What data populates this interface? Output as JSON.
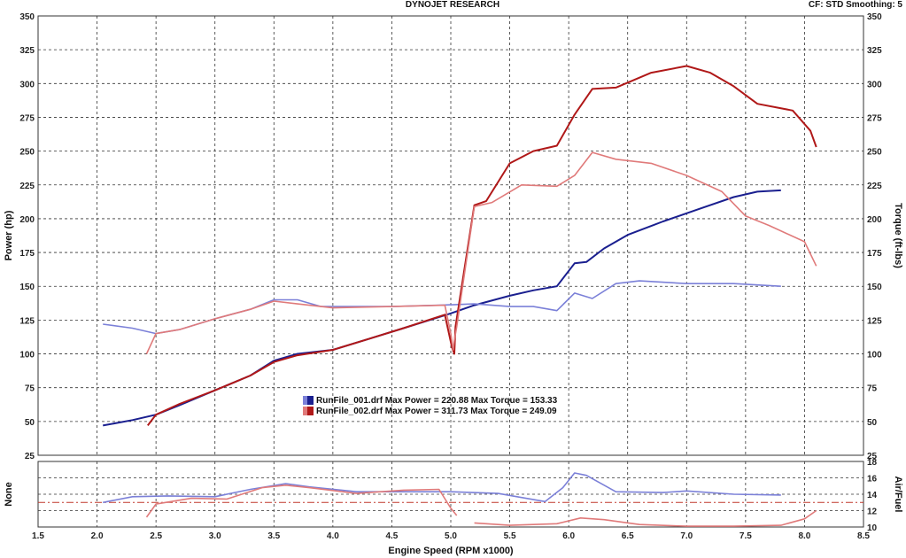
{
  "header": {
    "title": "DYNOJET RESEARCH",
    "settings": "CF: STD  Smoothing: 5"
  },
  "colors": {
    "run1_power": "#1a1f8f",
    "run1_torque": "#7b80d8",
    "run2_power": "#b01818",
    "run2_torque": "#e07a7a",
    "af_ref_line": "#c0392b"
  },
  "chart_data": [
    {
      "type": "line",
      "title": "DYNOJET RESEARCH",
      "xlabel": "Engine Speed (RPM x1000)",
      "ylabel": "Power (hp)",
      "y2label": "Torque (ft-lbs)",
      "xlim": [
        1.5,
        8.5
      ],
      "ylim": [
        25,
        350
      ],
      "y2lim": [
        25,
        350
      ],
      "x_ticks": [
        "1.5",
        "2.0",
        "2.5",
        "3.0",
        "3.5",
        "4.0",
        "4.5",
        "5.0",
        "5.5",
        "6.0",
        "6.5",
        "7.0",
        "7.5",
        "8.0",
        "8.5"
      ],
      "y_ticks": [
        "25",
        "50",
        "75",
        "100",
        "125",
        "150",
        "175",
        "200",
        "225",
        "250",
        "275",
        "300",
        "325",
        "350"
      ],
      "grid": true,
      "series": [
        {
          "name": "RunFile_001.drf",
          "quantity": "power",
          "color": "#1a1f8f",
          "x": [
            2.05,
            2.3,
            2.5,
            2.7,
            3.0,
            3.3,
            3.5,
            3.7,
            4.0,
            4.3,
            4.6,
            5.0,
            5.2,
            5.5,
            5.7,
            5.9,
            6.05,
            6.15,
            6.3,
            6.5,
            6.8,
            7.1,
            7.4,
            7.6,
            7.8
          ],
          "y": [
            47,
            51,
            55,
            62,
            73,
            84,
            95,
            100,
            103,
            111,
            119,
            130,
            136,
            143,
            147,
            150,
            167,
            168,
            178,
            188,
            198,
            207,
            216,
            220,
            221
          ]
        },
        {
          "name": "RunFile_001.drf",
          "quantity": "torque",
          "color": "#7b80d8",
          "x": [
            2.05,
            2.3,
            2.5,
            2.7,
            3.0,
            3.3,
            3.5,
            3.7,
            3.9,
            4.2,
            4.5,
            4.9,
            5.2,
            5.5,
            5.7,
            5.9,
            6.05,
            6.2,
            6.4,
            6.6,
            7.0,
            7.4,
            7.8
          ],
          "y": [
            122,
            119,
            115,
            118,
            126,
            133,
            140,
            140,
            135,
            135,
            135,
            136,
            137,
            135,
            135,
            132,
            145,
            141,
            152,
            154,
            152,
            152,
            150
          ]
        },
        {
          "name": "RunFile_002.drf",
          "quantity": "power",
          "color": "#b01818",
          "x": [
            2.43,
            2.5,
            2.7,
            3.0,
            3.3,
            3.5,
            3.7,
            4.0,
            4.3,
            4.6,
            4.95,
            5.01,
            5.03,
            5.04,
            5.2,
            5.3,
            5.5,
            5.7,
            5.9,
            6.05,
            6.2,
            6.4,
            6.7,
            7.0,
            7.2,
            7.4,
            7.6,
            7.9,
            8.05,
            8.1
          ],
          "y": [
            47,
            55,
            63,
            73,
            84,
            94,
            99,
            103,
            111,
            119,
            129,
            105,
            100,
            120,
            210,
            213,
            241,
            250,
            254,
            277,
            296,
            297,
            308,
            313,
            308,
            298,
            285,
            280,
            265,
            253
          ]
        },
        {
          "name": "RunFile_002.drf",
          "quantity": "torque",
          "color": "#e07a7a",
          "x": [
            2.42,
            2.5,
            2.7,
            3.0,
            3.3,
            3.5,
            3.7,
            4.0,
            4.5,
            4.95,
            5.0,
            5.02,
            5.03,
            5.05,
            5.2,
            5.35,
            5.6,
            5.9,
            6.05,
            6.2,
            6.4,
            6.7,
            7.0,
            7.3,
            7.5,
            7.7,
            8.0,
            8.1
          ],
          "y": [
            100,
            115,
            118,
            126,
            133,
            139,
            137,
            134,
            135,
            136,
            115,
            103,
            110,
            120,
            209,
            212,
            225,
            224,
            232,
            249,
            244,
            241,
            232,
            220,
            202,
            195,
            183,
            165
          ]
        }
      ]
    },
    {
      "type": "line",
      "ylabel": "None",
      "y2label": "Air/Fuel",
      "xlim": [
        1.5,
        8.5
      ],
      "y2lim": [
        10,
        18
      ],
      "y2_ticks": [
        "10",
        "12",
        "14",
        "16",
        "18"
      ],
      "reference_y": 13,
      "grid": true,
      "series": [
        {
          "name": "RunFile_001.drf",
          "quantity": "air/fuel",
          "color": "#7b80d8",
          "x": [
            2.05,
            2.3,
            2.6,
            3.0,
            3.3,
            3.6,
            3.8,
            4.2,
            4.6,
            5.0,
            5.4,
            5.8,
            5.95,
            6.05,
            6.15,
            6.4,
            6.8,
            7.0,
            7.4,
            7.8
          ],
          "y": [
            13.0,
            13.7,
            13.8,
            13.7,
            14.6,
            15.3,
            14.9,
            14.3,
            14.3,
            14.3,
            14.1,
            13.1,
            14.8,
            16.6,
            16.3,
            14.3,
            14.2,
            14.4,
            14.0,
            13.9
          ]
        },
        {
          "name": "RunFile_002.drf",
          "quantity": "air/fuel",
          "color": "#e07a7a",
          "x": [
            2.42,
            2.5,
            2.8,
            3.1,
            3.4,
            3.6,
            3.8,
            4.2,
            4.6,
            4.9,
            5.0,
            5.05
          ],
          "y": [
            11.2,
            12.8,
            13.5,
            13.4,
            14.8,
            15.1,
            14.8,
            14.1,
            14.5,
            14.6,
            12.3,
            11.4
          ]
        },
        {
          "name": "RunFile_002.drf",
          "quantity": "air/fuel",
          "color": "#e07a7a",
          "x": [
            5.2,
            5.5,
            5.9,
            6.1,
            6.3,
            6.6,
            7.0,
            7.4,
            7.8,
            8.0,
            8.1
          ],
          "y": [
            10.5,
            10.2,
            10.4,
            11.1,
            10.9,
            10.3,
            10.1,
            10.1,
            10.2,
            11.0,
            12.0
          ]
        }
      ]
    }
  ],
  "legend": [
    {
      "text": "RunFile_001.drf Max Power = 220.88 Max Torque = 153.33",
      "color": "#1a1f8f"
    },
    {
      "text": "RunFile_002.drf Max Power = 311.73 Max Torque = 249.09",
      "color": "#b01818"
    }
  ]
}
